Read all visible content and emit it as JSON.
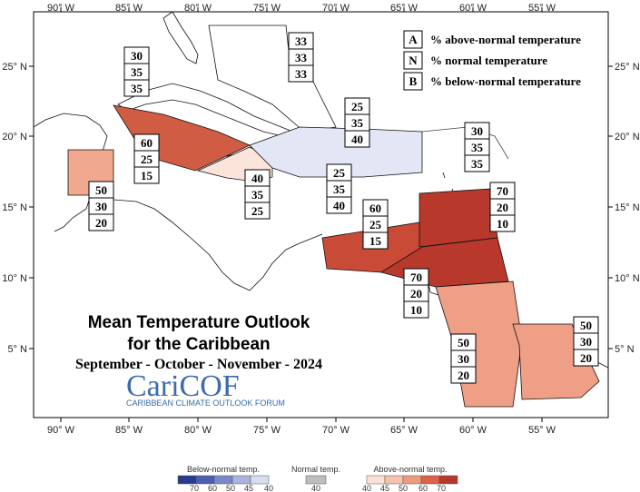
{
  "map": {
    "title_line1": "Mean Temperature Outlook",
    "title_line2": "for the Caribbean",
    "dates": "September - October - November - 2024",
    "logo_text": "CariCOF",
    "logo_subtitle": "CARIBBEAN CLIMATE OUTLOOK FORUM",
    "longitude_ticks": [
      "90° W",
      "85° W",
      "80° W",
      "75° W",
      "70° W",
      "65° W",
      "60° W",
      "55° W"
    ],
    "latitude_ticks": [
      "25° N",
      "20° N",
      "15° N",
      "10° N",
      "5° N"
    ],
    "legend": [
      {
        "letter": "A",
        "text": "% above-normal temperature"
      },
      {
        "letter": "N",
        "text": "% normal temperature"
      },
      {
        "letter": "B",
        "text": "% below-normal temperature"
      }
    ],
    "colorbars": {
      "below": {
        "title": "Below-normal temp.",
        "labels": [
          "70",
          "60",
          "50",
          "45",
          "40"
        ],
        "colors": [
          "#2b3a8f",
          "#4a5fb0",
          "#7b88c8",
          "#aab3dd",
          "#d8dcf0"
        ]
      },
      "normal": {
        "title": "Normal temp.",
        "labels": [
          "40"
        ],
        "colors": [
          "#bdbdbd"
        ]
      },
      "above": {
        "title": "Above-normal temp.",
        "labels": [
          "40",
          "45",
          "50",
          "60",
          "70"
        ],
        "colors": [
          "#fbe1d6",
          "#f6c2ad",
          "#ee9a7e",
          "#dc6148",
          "#b8362a"
        ]
      }
    },
    "regions": [
      {
        "id": "bahamas",
        "above": "33",
        "normal": "33",
        "below": "33",
        "fill": "#ffffff"
      },
      {
        "id": "cuba-west",
        "above": "30",
        "normal": "35",
        "below": "35",
        "fill": "#ffffff"
      },
      {
        "id": "belize",
        "above": "50",
        "normal": "30",
        "below": "20",
        "fill": "#f0a98f"
      },
      {
        "id": "cayman-jamaica",
        "above": "60",
        "normal": "25",
        "below": "15",
        "fill": "#d05c44"
      },
      {
        "id": "jamaica-south",
        "above": "40",
        "normal": "35",
        "below": "25",
        "fill": "#fbe4da"
      },
      {
        "id": "hispaniola",
        "above": "25",
        "normal": "35",
        "below": "40",
        "fill": "#e3e7f5"
      },
      {
        "id": "hispaniola-south",
        "above": "25",
        "normal": "35",
        "below": "40",
        "fill": "#e3e7f5"
      },
      {
        "id": "leewards-north",
        "above": "30",
        "normal": "35",
        "below": "35",
        "fill": "#ffffff"
      },
      {
        "id": "windwards",
        "above": "70",
        "normal": "20",
        "below": "10",
        "fill": "#b8392c"
      },
      {
        "id": "abc-islands",
        "above": "60",
        "normal": "25",
        "below": "15",
        "fill": "#c94a36"
      },
      {
        "id": "trinidad",
        "above": "70",
        "normal": "20",
        "below": "10",
        "fill": "#b8392c"
      },
      {
        "id": "guyana",
        "above": "50",
        "normal": "30",
        "below": "20",
        "fill": "#ee9f86"
      },
      {
        "id": "french-guiana",
        "above": "50",
        "normal": "30",
        "below": "20",
        "fill": "#ee9f86"
      }
    ]
  }
}
